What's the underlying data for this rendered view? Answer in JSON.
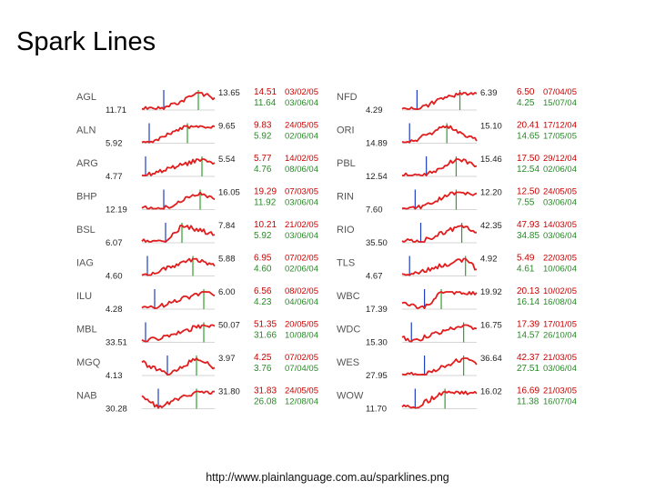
{
  "page": {
    "title": "Spark Lines",
    "credit": "http://www.plainlanguage.com.au/sparklines.png"
  },
  "colors": {
    "line": "#e11d1d",
    "high_tick": "#2ea02e",
    "low_tick": "#1f3fbf",
    "baseline": "#c8c8c8",
    "high_text": "#cc0000",
    "low_text": "#2a8a2a"
  },
  "chart_data": {
    "type": "line",
    "columns": [
      [
        {
          "code": "AGL",
          "start": "11.71",
          "end": "13.65",
          "high": "14.51",
          "high_date": "03/02/05",
          "low": "11.64",
          "low_date": "03/06/04"
        },
        {
          "code": "ALN",
          "start": "5.92",
          "end": "9.65",
          "high": "9.83",
          "high_date": "24/05/05",
          "low": "5.92",
          "low_date": "02/06/04"
        },
        {
          "code": "ARG",
          "start": "4.77",
          "end": "5.54",
          "high": "5.77",
          "high_date": "14/02/05",
          "low": "4.76",
          "low_date": "08/06/04"
        },
        {
          "code": "BHP",
          "start": "12.19",
          "end": "16.05",
          "high": "19.29",
          "high_date": "07/03/05",
          "low": "11.92",
          "low_date": "03/06/04"
        },
        {
          "code": "BSL",
          "start": "6.07",
          "end": "7.84",
          "high": "10.21",
          "high_date": "21/02/05",
          "low": "5.92",
          "low_date": "03/06/04"
        },
        {
          "code": "IAG",
          "start": "4.60",
          "end": "5.88",
          "high": "6.95",
          "high_date": "07/02/05",
          "low": "4.60",
          "low_date": "02/06/04"
        },
        {
          "code": "ILU",
          "start": "4.28",
          "end": "6.00",
          "high": "6.56",
          "high_date": "08/02/05",
          "low": "4.23",
          "low_date": "04/06/04"
        },
        {
          "code": "MBL",
          "start": "33.51",
          "end": "50.07",
          "high": "51.35",
          "high_date": "20/05/05",
          "low": "31.66",
          "low_date": "10/08/04"
        },
        {
          "code": "MGQ",
          "start": "4.13",
          "end": "3.97",
          "high": "4.25",
          "high_date": "07/02/05",
          "low": "3.76",
          "low_date": "07/04/05"
        },
        {
          "code": "NAB",
          "start": "30.28",
          "end": "31.80",
          "high": "31.83",
          "high_date": "24/05/05",
          "low": "26.08",
          "low_date": "12/08/04"
        }
      ],
      [
        {
          "code": "NFD",
          "start": "4.29",
          "end": "6.39",
          "high": "6.50",
          "high_date": "07/04/05",
          "low": "4.25",
          "low_date": "15/07/04"
        },
        {
          "code": "ORI",
          "start": "14.89",
          "end": "15.10",
          "high": "20.41",
          "high_date": "17/12/04",
          "low": "14.65",
          "low_date": "17/05/05"
        },
        {
          "code": "PBL",
          "start": "12.54",
          "end": "15.46",
          "high": "17.50",
          "high_date": "29/12/04",
          "low": "12.54",
          "low_date": "02/06/04"
        },
        {
          "code": "RIN",
          "start": "7.60",
          "end": "12.20",
          "high": "12.50",
          "high_date": "24/05/05",
          "low": "7.55",
          "low_date": "03/06/04"
        },
        {
          "code": "RIO",
          "start": "35.50",
          "end": "42.35",
          "high": "47.93",
          "high_date": "14/03/05",
          "low": "34.85",
          "low_date": "03/06/04"
        },
        {
          "code": "TLS",
          "start": "4.67",
          "end": "4.92",
          "high": "5.49",
          "high_date": "22/03/05",
          "low": "4.61",
          "low_date": "10/06/04"
        },
        {
          "code": "WBC",
          "start": "17.39",
          "end": "19.92",
          "high": "20.13",
          "high_date": "10/02/05",
          "low": "16.14",
          "low_date": "16/08/04"
        },
        {
          "code": "WDC",
          "start": "15.30",
          "end": "16.75",
          "high": "17.39",
          "high_date": "17/01/05",
          "low": "14.57",
          "low_date": "26/10/04"
        },
        {
          "code": "WES",
          "start": "27.95",
          "end": "36.64",
          "high": "42.37",
          "high_date": "21/03/05",
          "low": "27.51",
          "low_date": "03/06/04"
        },
        {
          "code": "WOW",
          "start": "11.70",
          "end": "16.02",
          "high": "16.69",
          "high_date": "21/03/05",
          "low": "11.38",
          "low_date": "16/07/04"
        }
      ]
    ]
  }
}
